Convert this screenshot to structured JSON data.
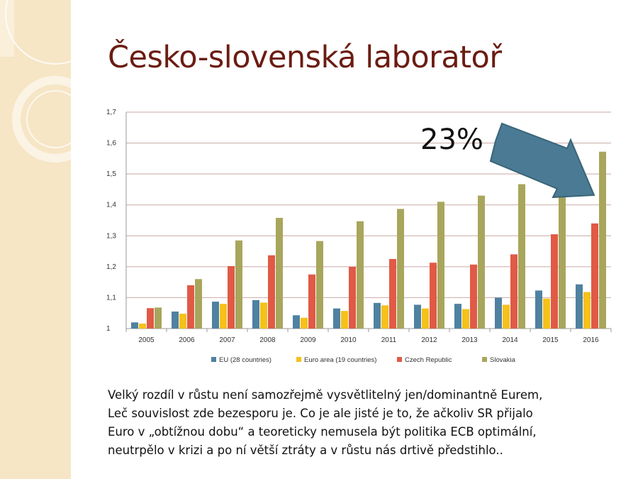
{
  "slide": {
    "title": "Česko-slovenská laboratoř",
    "callout": "23%",
    "body_lines": [
      "Velký rozdíl v růstu není samozřejmě vysvětlitelný jen/dominantně Eurem,",
      "Leč souvislost zde bezesporu je. Co je ale jisté je to, že ačkoliv SR přijalo",
      "Euro v „obtížnou dobu“ a teoreticky nemusela být politika ECB optimální,",
      "neutrpělo v krizi a po ní větší ztráty a v růstu nás drtivě předstihlo.."
    ],
    "colors": {
      "title": "#6b1c12",
      "background": "#ffffff",
      "sidebar": "#f6e6c6",
      "arrow": "#4a7a94"
    }
  },
  "chart_data": {
    "type": "bar",
    "categories": [
      "2005",
      "2006",
      "2007",
      "2008",
      "2009",
      "2010",
      "2011",
      "2012",
      "2013",
      "2014",
      "2015",
      "2016"
    ],
    "series": [
      {
        "name": "EU (28 countries)",
        "color": "#4f81a0",
        "values": [
          1.02,
          1.055,
          1.087,
          1.092,
          1.043,
          1.065,
          1.083,
          1.077,
          1.08,
          1.1,
          1.123,
          1.143
        ]
      },
      {
        "name": "Euro area (19 countries)",
        "color": "#f5c11a",
        "values": [
          1.016,
          1.048,
          1.08,
          1.084,
          1.035,
          1.057,
          1.075,
          1.065,
          1.063,
          1.077,
          1.097,
          1.118
        ]
      },
      {
        "name": "Czech Republic",
        "color": "#e05a46",
        "values": [
          1.066,
          1.14,
          1.202,
          1.237,
          1.175,
          1.2,
          1.225,
          1.213,
          1.207,
          1.24,
          1.305,
          1.34
        ]
      },
      {
        "name": "Slovakia",
        "color": "#a8a65c",
        "values": [
          1.068,
          1.16,
          1.285,
          1.358,
          1.283,
          1.347,
          1.387,
          1.41,
          1.43,
          1.467,
          1.52,
          1.572
        ]
      }
    ],
    "yticks": [
      "1",
      "1,1",
      "1,2",
      "1,3",
      "1,4",
      "1,5",
      "1,6",
      "1,7"
    ],
    "ylim": [
      1,
      1.7
    ],
    "grid": true,
    "legend_position": "bottom"
  }
}
